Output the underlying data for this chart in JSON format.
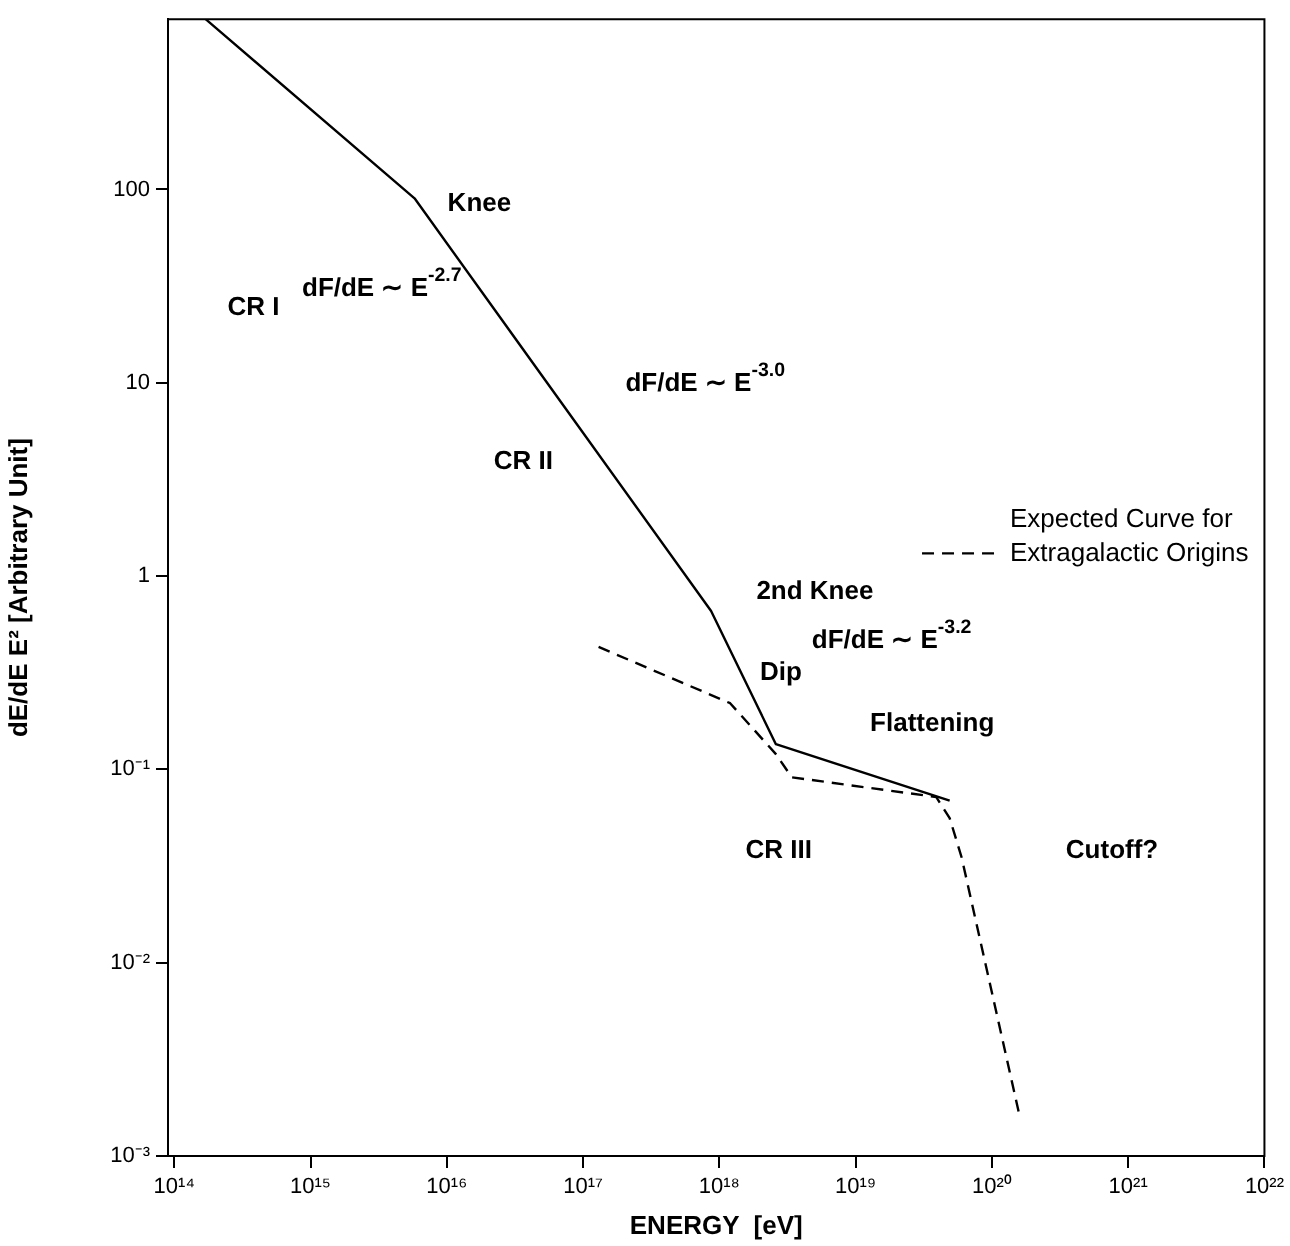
{
  "chart_data": {
    "type": "line",
    "xlabel": "ENERGY  [eV]",
    "ylabel": "dE/dE E² [Arbitrary Unit]",
    "log": "xy",
    "xlim": [
      90000000000000.0,
      1e+22
    ],
    "ylim": [
      0.001,
      760
    ],
    "xticks": [
      {
        "value": 100000000000000.0,
        "label": "10¹⁴"
      },
      {
        "value": 1000000000000000.0,
        "label": "10¹⁵"
      },
      {
        "value": 1e+16,
        "label": "10¹⁶"
      },
      {
        "value": 1e+17,
        "label": "10¹⁷"
      },
      {
        "value": 1e+18,
        "label": "10¹⁸"
      },
      {
        "value": 1e+19,
        "label": "10¹⁹"
      },
      {
        "value": 1e+20,
        "label": "10²⁰"
      },
      {
        "value": 1e+21,
        "label": "10²¹"
      },
      {
        "value": 1e+22,
        "label": "10²²"
      }
    ],
    "yticks": [
      {
        "value": 0.001,
        "label": "10⁻³"
      },
      {
        "value": 0.01,
        "label": "10⁻²"
      },
      {
        "value": 0.1,
        "label": "10⁻¹"
      },
      1,
      10,
      100
    ],
    "grid": false,
    "marker": "none",
    "legend": "right",
    "series": [
      {
        "color": "#000000",
        "line_style": "solid",
        "x": [
          170000000000000.0,
          5800000000000000.0,
          8.7e+17,
          2.6e+18,
          4.9e+19
        ],
        "values": [
          760,
          90,
          0.66,
          0.135,
          0.069
        ]
      },
      {
        "name": "Expected Curve for Extragalactic Origins",
        "color": "#000000",
        "line_style": "dashed",
        "x": [
          1.3e+17,
          1.2e+18,
          2.6e+18,
          3.4e+18,
          3.9e+19,
          4.9e+19,
          6e+19,
          1.6e+20
        ],
        "values": [
          0.43,
          0.22,
          0.12,
          0.091,
          0.072,
          0.056,
          0.035,
          0.0016
        ]
      }
    ],
    "annotations": [
      "CR I",
      "dF/dE ∼ E$^{-2.7}$",
      "Knee",
      "CR II",
      "dF/dE ∼ E$^{-3.0}$",
      "2nd Knee",
      "dF/dE ∼ E$^{-3.2}$",
      "Dip",
      "Flattening",
      "CR III",
      "Cutoff?"
    ]
  }
}
